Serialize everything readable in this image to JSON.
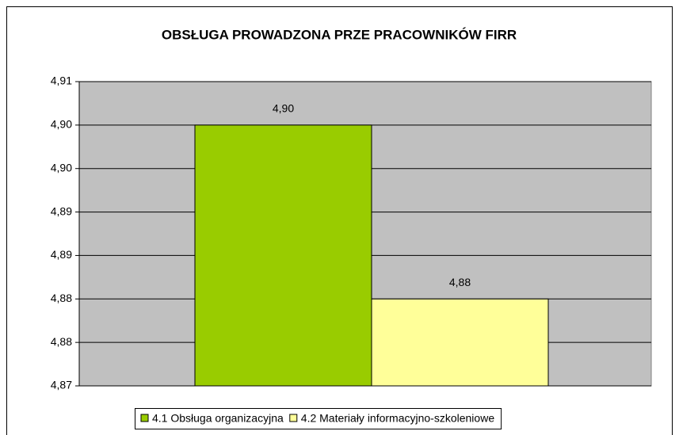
{
  "chart_data": {
    "type": "bar",
    "title": "OBSŁUGA PROWADZONA PRZE PRACOWNIKÓW FIRR",
    "categories": [
      "4.1 Obsługa organizacyjna",
      "4.2 Materiały informacyjno-szkoleniowe"
    ],
    "values": [
      4.9,
      4.88
    ],
    "value_labels": [
      "4,90",
      "4,88"
    ],
    "colors": [
      "#99cc00",
      "#ffff99"
    ],
    "ylim": [
      4.87,
      4.905
    ],
    "yticks": [
      {
        "value": 4.87,
        "label": "4,87"
      },
      {
        "value": 4.875,
        "label": "4,88"
      },
      {
        "value": 4.88,
        "label": "4,88"
      },
      {
        "value": 4.885,
        "label": "4,89"
      },
      {
        "value": 4.89,
        "label": "4,89"
      },
      {
        "value": 4.895,
        "label": "4,90"
      },
      {
        "value": 4.9,
        "label": "4,90"
      },
      {
        "value": 4.905,
        "label": "4,91"
      }
    ],
    "grid": true,
    "legend": "bottom"
  }
}
